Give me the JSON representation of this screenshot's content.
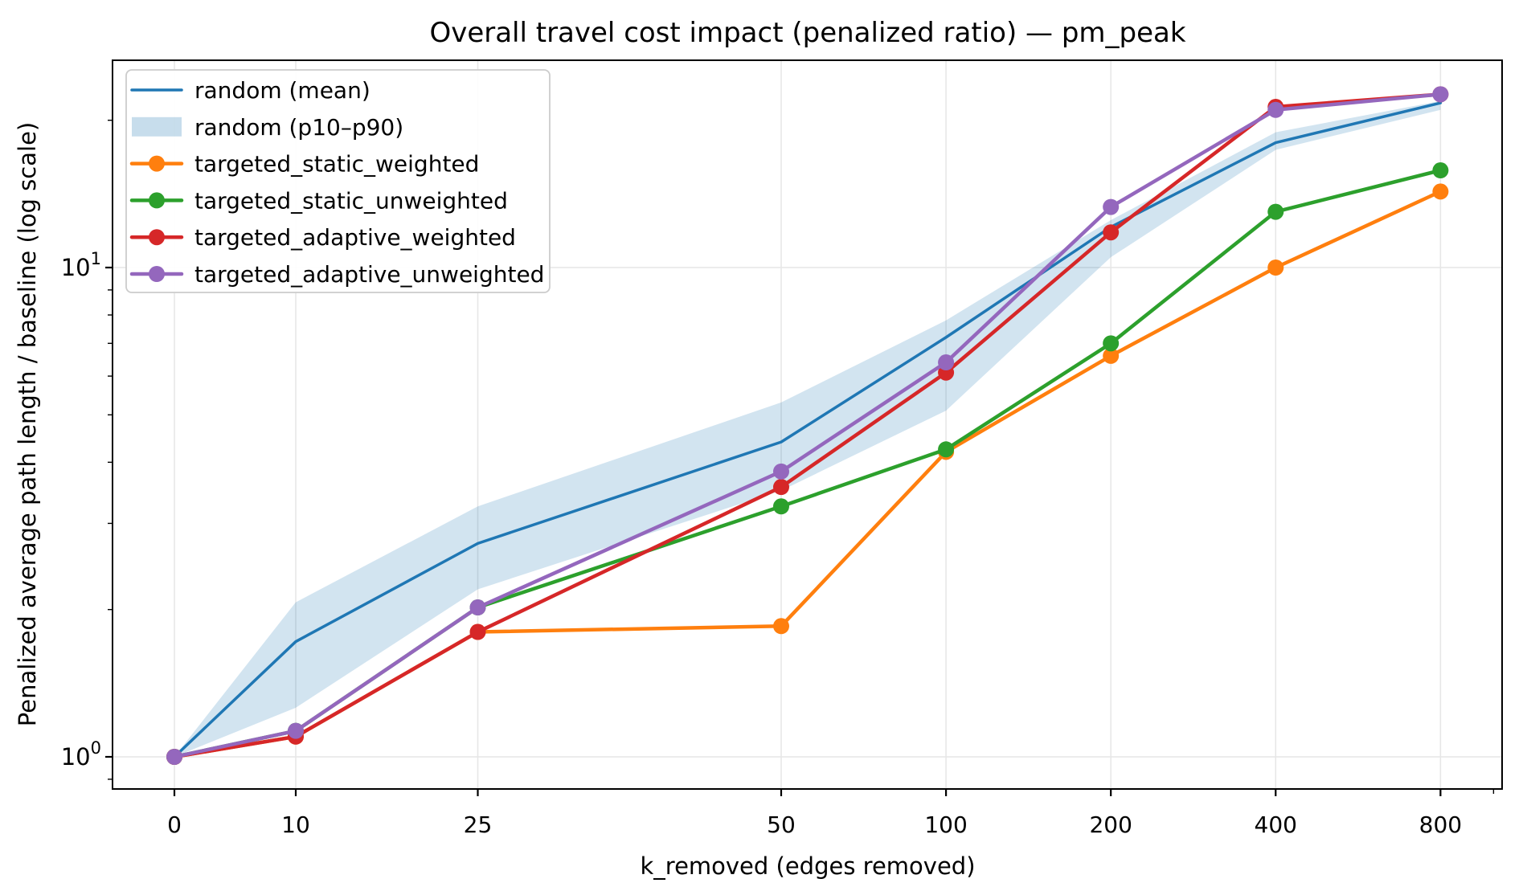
{
  "figure": {
    "background": "#ffffff",
    "text_color": "#000000",
    "grid_color": "#e6e6e6",
    "spine_color": "#000000"
  },
  "chart_data": {
    "type": "line",
    "title": "Overall travel cost impact (penalized ratio) — pm_peak",
    "xlabel": "k_removed (edges removed)",
    "ylabel": "Penalized average path length / baseline (log scale)",
    "x_scale": "symlog (linear 0–50, logarithmic above 50)",
    "y_scale": "log",
    "grid": true,
    "legend_position": "upper left",
    "x": [
      0,
      10,
      25,
      50,
      100,
      200,
      400,
      800
    ],
    "x_tick_labels": [
      "0",
      "10",
      "25",
      "50",
      "100",
      "200",
      "400",
      "800"
    ],
    "x_minor_ticks": [
      1000
    ],
    "y_ticks": [
      {
        "value": 1,
        "base": "10",
        "exp": "0"
      },
      {
        "value": 10,
        "base": "10",
        "exp": "1"
      }
    ],
    "y_minor_ticks": [
      0.9,
      2,
      3,
      4,
      5,
      6,
      7,
      8,
      9,
      20
    ],
    "ylim": [
      0.86,
      26.5
    ],
    "series": [
      {
        "name": "random (mean)",
        "color": "#1f77b4",
        "style": "line",
        "values": [
          1.0,
          1.72,
          2.73,
          4.4,
          7.2,
          12.1,
          18.0,
          21.7
        ]
      },
      {
        "name": "random (p10–p90)",
        "color": "#1f77b4",
        "style": "band",
        "lower": [
          1.0,
          1.26,
          2.2,
          3.5,
          5.1,
          10.5,
          17.4,
          21.0
        ],
        "upper": [
          1.0,
          2.07,
          3.25,
          5.3,
          7.8,
          12.5,
          18.9,
          21.9
        ]
      },
      {
        "name": "targeted_static_weighted",
        "color": "#ff7f0e",
        "style": "line+marker",
        "values": [
          1.0,
          1.1,
          1.8,
          1.85,
          4.2,
          6.6,
          10.0,
          14.3
        ]
      },
      {
        "name": "targeted_static_unweighted",
        "color": "#2ca02c",
        "style": "line+marker",
        "values": [
          1.0,
          1.13,
          2.02,
          3.25,
          4.25,
          7.0,
          13.0,
          15.8
        ]
      },
      {
        "name": "targeted_adaptive_weighted",
        "color": "#d62728",
        "style": "line+marker",
        "values": [
          1.0,
          1.1,
          1.8,
          3.56,
          6.1,
          11.8,
          21.3,
          22.6
        ]
      },
      {
        "name": "targeted_adaptive_unweighted",
        "color": "#9467bd",
        "style": "line+marker",
        "values": [
          1.0,
          1.13,
          2.02,
          3.83,
          6.4,
          13.3,
          21.0,
          22.6
        ]
      }
    ]
  }
}
